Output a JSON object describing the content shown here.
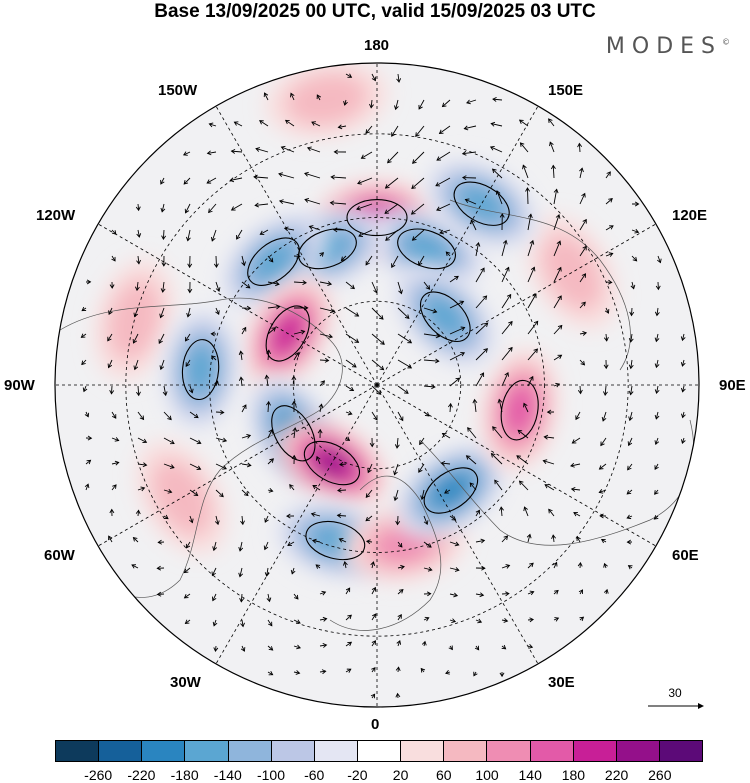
{
  "title": "Base 13/09/2025 00 UTC, valid 15/09/2025 03 UTC",
  "brand": "MODES",
  "brand_mark": "©",
  "longitude_labels": {
    "n180": "180",
    "w150": "150W",
    "e150": "150E",
    "w120": "120W",
    "e120": "120E",
    "w90": "90W",
    "e90": "90E",
    "w60": "60W",
    "e60": "60E",
    "w30": "30W",
    "e30": "30E",
    "s0": "0"
  },
  "vector_reference": "30",
  "colorbar": {
    "colors": [
      "#0d3a5c",
      "#15609a",
      "#2a85c0",
      "#5ba6d2",
      "#8fb5dc",
      "#bcc7e6",
      "#e4e6f3",
      "#ffffff",
      "#f9dede",
      "#f5b9c1",
      "#ef8db3",
      "#e35aa8",
      "#c81f97",
      "#94108a",
      "#5c0a78"
    ],
    "ticks": [
      "-260",
      "-220",
      "-180",
      "-140",
      "-100",
      "-60",
      "-20",
      "20",
      "60",
      "100",
      "140",
      "180",
      "220",
      "260"
    ]
  },
  "anomalies": [
    {
      "lon": 180,
      "r": 0.52,
      "val": 180
    },
    {
      "lon": 160,
      "r": 0.45,
      "val": -170
    },
    {
      "lon": 200,
      "r": 0.45,
      "val": -160
    },
    {
      "lon": 220,
      "r": 0.5,
      "val": -150
    },
    {
      "lon": 240,
      "r": 0.32,
      "val": 180
    },
    {
      "lon": 255,
      "r": 0.78,
      "val": 60
    },
    {
      "lon": 265,
      "r": 0.55,
      "val": -140
    },
    {
      "lon": 300,
      "r": 0.3,
      "val": -180
    },
    {
      "lon": 330,
      "r": 0.28,
      "val": 230
    },
    {
      "lon": 300,
      "r": 0.7,
      "val": 80
    },
    {
      "lon": 345,
      "r": 0.5,
      "val": -150
    },
    {
      "lon": 10,
      "r": 0.5,
      "val": 110
    },
    {
      "lon": 35,
      "r": 0.4,
      "val": -200
    },
    {
      "lon": 80,
      "r": 0.45,
      "val": 160
    },
    {
      "lon": 135,
      "r": 0.3,
      "val": -140
    },
    {
      "lon": 120,
      "r": 0.7,
      "val": 90
    },
    {
      "lon": 150,
      "r": 0.65,
      "val": -150
    },
    {
      "lon": 190,
      "r": 0.9,
      "val": 70
    }
  ]
}
